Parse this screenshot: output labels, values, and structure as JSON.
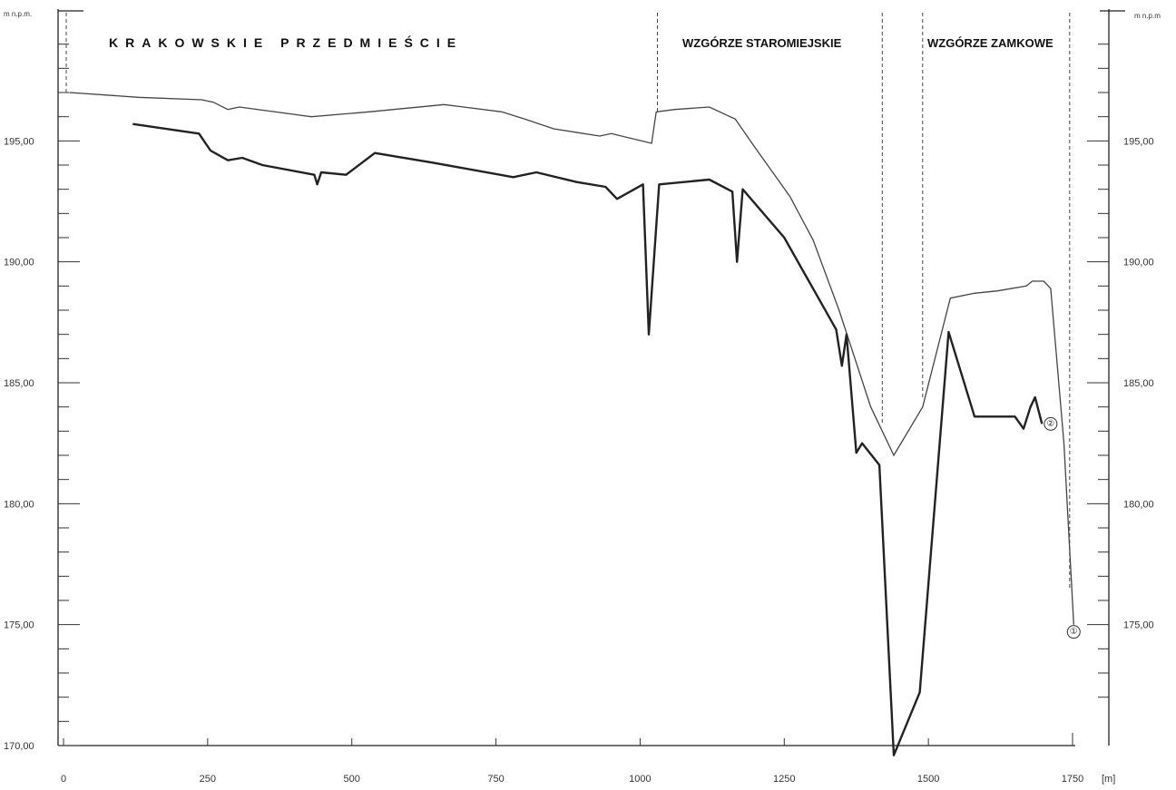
{
  "chart_data": {
    "type": "line",
    "xlabel": "[m]",
    "ylabel_left": "m n.p.m.",
    "ylabel_right": "m n.p.m",
    "xlim": [
      0,
      1750
    ],
    "ylim": [
      170,
      200
    ],
    "x_ticks": [
      "0",
      "250",
      "500",
      "750",
      "1000",
      "1250",
      "1500",
      "1750"
    ],
    "y_ticks": [
      "170,00",
      "175,00",
      "180,00",
      "185,00",
      "190,00",
      "195,00"
    ],
    "y_ticks_right": [
      "175,00",
      "180,00",
      "185,00",
      "190,00",
      "195,00"
    ],
    "regions": [
      {
        "label": "KRAKOWSKIE PRZEDMIEŚCIE"
      },
      {
        "label": "WZGÓRZE STAROMIEJSKIE"
      },
      {
        "label": "WZGÓRZE ZAMKOWE"
      }
    ],
    "dividers_x": [
      1030,
      1420,
      1490,
      1745
    ],
    "series": [
      {
        "points": [
          [
            10,
            197
          ],
          [
            130,
            196.8
          ],
          [
            240,
            196.7
          ],
          [
            260,
            196.6
          ],
          [
            285,
            196.3
          ],
          [
            305,
            196.4
          ],
          [
            430,
            196
          ],
          [
            530,
            196.2
          ],
          [
            660,
            196.5
          ],
          [
            760,
            196.2
          ],
          [
            800,
            195.9
          ],
          [
            850,
            195.5
          ],
          [
            930,
            195.2
          ],
          [
            950,
            195.3
          ],
          [
            1020,
            194.9
          ],
          [
            1028,
            196.2
          ],
          [
            1060,
            196.3
          ],
          [
            1120,
            196.4
          ],
          [
            1165,
            195.9
          ],
          [
            1200,
            194.7
          ],
          [
            1260,
            192.7
          ],
          [
            1300,
            190.9
          ],
          [
            1345,
            188
          ],
          [
            1400,
            184
          ],
          [
            1440,
            182
          ],
          [
            1490,
            184
          ],
          [
            1538,
            188.5
          ],
          [
            1580,
            188.7
          ],
          [
            1620,
            188.8
          ],
          [
            1670,
            189
          ],
          [
            1680,
            189.2
          ],
          [
            1700,
            189.2
          ],
          [
            1712,
            188.9
          ],
          [
            1735,
            182.5
          ],
          [
            1752,
            175
          ]
        ]
      },
      {
        "points": [
          [
            120,
            195.7
          ],
          [
            235,
            195.3
          ],
          [
            255,
            194.6
          ],
          [
            285,
            194.2
          ],
          [
            310,
            194.3
          ],
          [
            345,
            194
          ],
          [
            435,
            193.6
          ],
          [
            440,
            193.2
          ],
          [
            447,
            193.7
          ],
          [
            490,
            193.6
          ],
          [
            540,
            194.5
          ],
          [
            640,
            194.1
          ],
          [
            780,
            193.5
          ],
          [
            820,
            193.7
          ],
          [
            890,
            193.3
          ],
          [
            940,
            193.1
          ],
          [
            960,
            192.6
          ],
          [
            1005,
            193.2
          ],
          [
            1015,
            187
          ],
          [
            1033,
            193.2
          ],
          [
            1120,
            193.4
          ],
          [
            1160,
            192.9
          ],
          [
            1168,
            190
          ],
          [
            1178,
            193
          ],
          [
            1250,
            191
          ],
          [
            1340,
            187.2
          ],
          [
            1350,
            185.7
          ],
          [
            1358,
            187
          ],
          [
            1375,
            182.1
          ],
          [
            1385,
            182.5
          ],
          [
            1415,
            181.6
          ],
          [
            1440,
            169.6
          ],
          [
            1485,
            172.2
          ],
          [
            1535,
            187.1
          ],
          [
            1580,
            183.6
          ],
          [
            1650,
            183.6
          ],
          [
            1665,
            183.1
          ],
          [
            1677,
            184
          ],
          [
            1685,
            184.4
          ],
          [
            1697,
            183.3
          ]
        ]
      }
    ],
    "markers": [
      {
        "label": "①",
        "x": 1752,
        "y": 174.7
      },
      {
        "label": "②",
        "x": 1712,
        "y": 183.3
      }
    ]
  }
}
